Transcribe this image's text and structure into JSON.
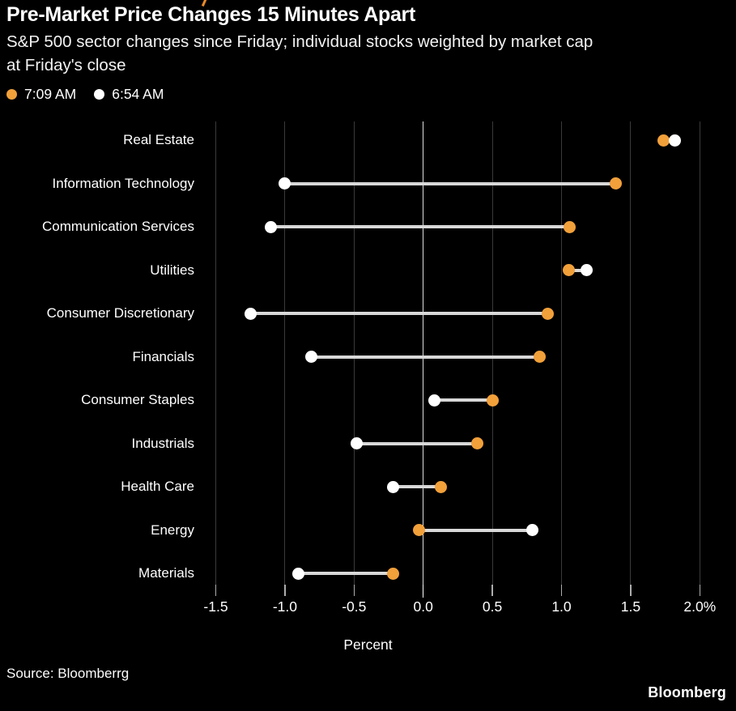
{
  "header": {
    "title": "Pre-Market Price Changes 15 Minutes Apart",
    "subtitle_line1": "S&P 500 sector changes since Friday; individual stocks weighted by market cap",
    "subtitle_line2": "at Friday's close"
  },
  "legend": {
    "items": [
      {
        "label": "7:09 AM",
        "color": "#F1A03A"
      },
      {
        "label": "6:54 AM",
        "color": "#FFFFFF"
      }
    ]
  },
  "chart_data": {
    "type": "dumbbell",
    "title": "Pre-Market Price Changes 15 Minutes Apart",
    "xlabel": "Percent",
    "categories": [
      "Real Estate",
      "Information Technology",
      "Communication Services",
      "Utilities",
      "Consumer Discretionary",
      "Financials",
      "Consumer Staples",
      "Industrials",
      "Health Care",
      "Energy",
      "Materials"
    ],
    "series": [
      {
        "name": "7:09 AM",
        "color": "#F1A03A",
        "values": [
          1.74,
          1.39,
          1.06,
          1.05,
          0.9,
          0.84,
          0.5,
          0.39,
          0.13,
          -0.03,
          -0.22
        ]
      },
      {
        "name": "6:54 AM",
        "color": "#FFFFFF",
        "values": [
          1.82,
          -1.0,
          -1.1,
          1.18,
          -1.25,
          -0.81,
          0.08,
          -0.48,
          -0.22,
          0.79,
          -0.9
        ]
      }
    ],
    "xlim": [
      -1.5,
      2.0
    ],
    "xticks": [
      -1.5,
      -1.0,
      -0.5,
      0.0,
      0.5,
      1.0,
      1.5,
      2.0
    ],
    "xtick_labels": [
      "-1.5",
      "-1.0",
      "-0.5",
      "0.0",
      "0.5",
      "1.0",
      "1.5",
      "2.0%"
    ],
    "grid": "vertical",
    "zero_line": true,
    "legend_position": "top-left",
    "connector_color": "#D8D8D8"
  },
  "footer": {
    "source": "Source: Bloomberrg",
    "brand": "Bloomberg"
  }
}
